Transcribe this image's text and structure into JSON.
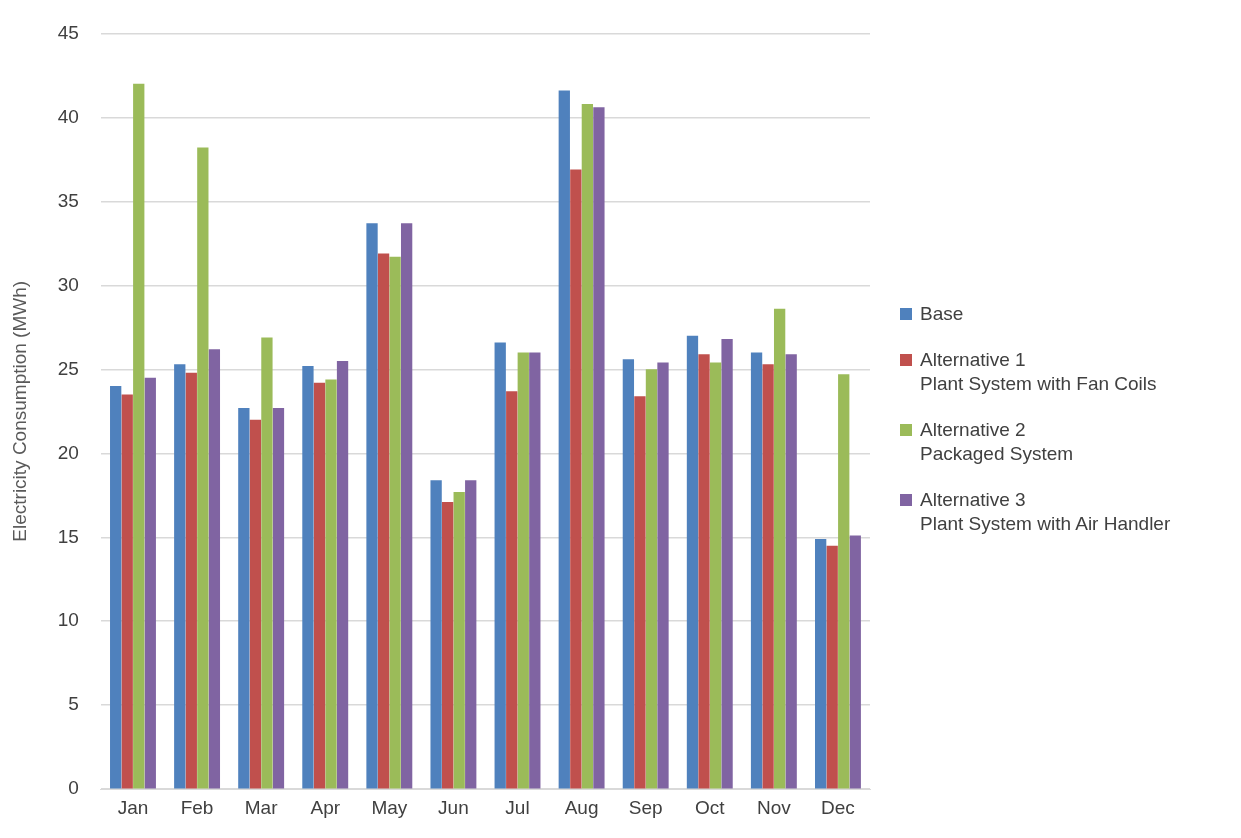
{
  "chart_data": {
    "type": "bar",
    "ylabel": "Electricity Consumption (MWh)",
    "categories": [
      "Jan",
      "Feb",
      "Mar",
      "Apr",
      "May",
      "Jun",
      "Jul",
      "Aug",
      "Sep",
      "Oct",
      "Nov",
      "Dec"
    ],
    "series": [
      {
        "name": "Base",
        "color": "#4f81bd",
        "values": [
          24.0,
          25.3,
          22.7,
          25.2,
          33.7,
          18.4,
          26.6,
          41.6,
          25.6,
          27.0,
          26.0,
          14.9
        ]
      },
      {
        "name": "Alternative 1\nPlant System with Fan Coils",
        "color": "#c0504d",
        "values": [
          23.5,
          24.8,
          22.0,
          24.2,
          31.9,
          17.1,
          23.7,
          36.9,
          23.4,
          25.9,
          25.3,
          14.5
        ]
      },
      {
        "name": "Alternative 2\nPackaged System",
        "color": "#9bbb59",
        "values": [
          42.0,
          38.2,
          26.9,
          24.4,
          31.7,
          17.7,
          26.0,
          40.8,
          25.0,
          25.4,
          28.6,
          24.7
        ]
      },
      {
        "name": "Alternative 3\nPlant System with Air Handler",
        "color": "#8064a2",
        "values": [
          24.5,
          26.2,
          22.7,
          25.5,
          33.7,
          18.4,
          26.0,
          40.6,
          25.4,
          26.8,
          25.9,
          15.1
        ]
      }
    ],
    "ylim": [
      0,
      45
    ],
    "yticks": [
      0,
      5,
      10,
      15,
      20,
      25,
      30,
      35,
      40,
      45
    ],
    "grid": "y",
    "legend": "right"
  }
}
